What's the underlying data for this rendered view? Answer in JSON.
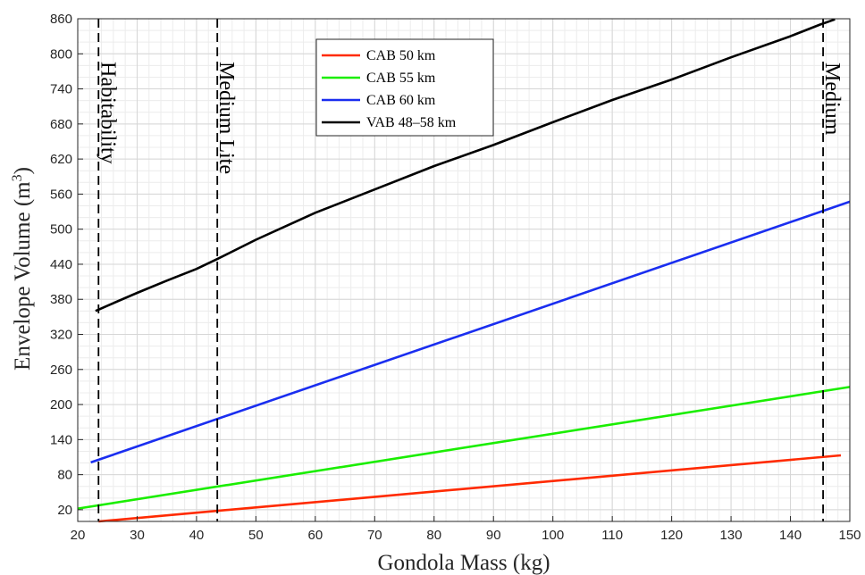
{
  "chart_data": {
    "type": "line",
    "xlabel": "Gondola Mass (kg)",
    "ylabel": {
      "text": "Envelope Volume (m",
      "sup": "3",
      "close": ")"
    },
    "xlim": [
      20,
      150
    ],
    "ylim": [
      0,
      860
    ],
    "x_ticks": [
      20,
      30,
      40,
      50,
      60,
      70,
      80,
      90,
      100,
      110,
      120,
      130,
      140,
      150
    ],
    "y_ticks": [
      20,
      80,
      140,
      200,
      260,
      320,
      380,
      440,
      500,
      560,
      620,
      680,
      740,
      800,
      860
    ],
    "grid": true,
    "legend_position": "top-center",
    "series": [
      {
        "name": "CAB 50 km",
        "color": "#ff2a00",
        "x": [
          23.5,
          148.5
        ],
        "y": [
          0,
          113
        ]
      },
      {
        "name": "CAB 55 km",
        "color": "#1aee00",
        "x": [
          20,
          150
        ],
        "y": [
          22,
          230
        ]
      },
      {
        "name": "CAB 60 km",
        "color": "#1a2ef0",
        "x": [
          22.2,
          150
        ],
        "y": [
          101,
          547
        ]
      },
      {
        "name": "VAB 48–58 km",
        "color": "#000000",
        "x": [
          23,
          25,
          30,
          35,
          40,
          43.5,
          50,
          60,
          70,
          80,
          90,
          100,
          110,
          120,
          130,
          140,
          145,
          147.5
        ],
        "y": [
          360,
          369,
          391,
          412,
          432,
          449,
          482,
          528,
          568,
          608,
          644,
          683,
          721,
          756,
          794,
          830,
          850,
          859
        ]
      }
    ],
    "vertical_markers": [
      {
        "label": "Habitability",
        "x": 23.5
      },
      {
        "label": "Medium Lite",
        "x": 43.5
      },
      {
        "label": "Medium",
        "x": 145.5
      }
    ]
  }
}
